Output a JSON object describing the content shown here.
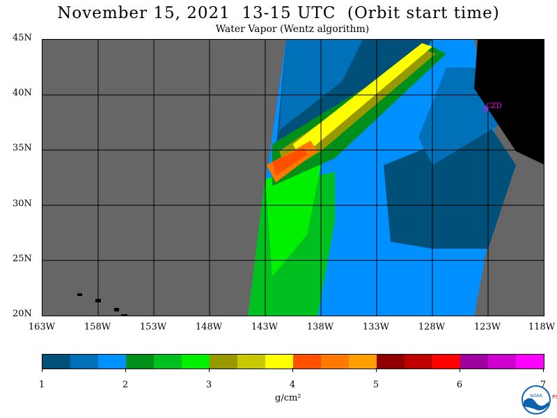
{
  "title": "November 15, 2021  13-15 UTC  (Orbit start time)",
  "subtitle": "Water Vapor (Wentz algorithm)",
  "map": {
    "lat_labels": [
      "45N",
      "40N",
      "35N",
      "30N",
      "25N",
      "20N"
    ],
    "lon_labels": [
      "163W",
      "158W",
      "153W",
      "148W",
      "143W",
      "138W",
      "133W",
      "128W",
      "123W",
      "118W"
    ],
    "lat_range": [
      20,
      45
    ],
    "lon_range": [
      -163,
      -118
    ],
    "marker_label": "CZD",
    "colors": {
      "no_data": "#666666",
      "land": "#000000",
      "grid": "#000000",
      "marker": "#ff00ff"
    }
  },
  "colorbar": {
    "tick_labels": [
      "1",
      "2",
      "3",
      "4",
      "5",
      "6",
      "7"
    ],
    "unit": "g/cm²",
    "colors": [
      "#00507a",
      "#0070b8",
      "#0090ff",
      "#00901a",
      "#00c020",
      "#00f000",
      "#989800",
      "#c8c800",
      "#ffff00",
      "#ff5000",
      "#ff7800",
      "#ffa000",
      "#900000",
      "#c00000",
      "#ff0000",
      "#a000a0",
      "#d000d0",
      "#ff00ff"
    ]
  },
  "logo": {
    "text": "NOAA",
    "side_text": "PSL"
  }
}
